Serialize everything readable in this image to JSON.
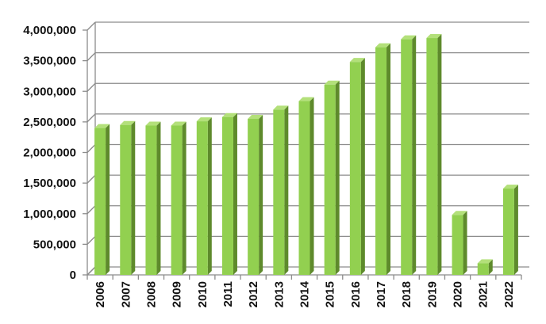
{
  "chart_data": {
    "type": "bar",
    "title": "",
    "xlabel": "",
    "ylabel": "",
    "categories": [
      "2006",
      "2007",
      "2008",
      "2009",
      "2010",
      "2011",
      "2012",
      "2013",
      "2014",
      "2015",
      "2016",
      "2017",
      "2018",
      "2019",
      "2020",
      "2021",
      "2022"
    ],
    "values": [
      2400000,
      2450000,
      2440000,
      2440000,
      2510000,
      2580000,
      2550000,
      2700000,
      2840000,
      3110000,
      3480000,
      3720000,
      3850000,
      3870000,
      980000,
      190000,
      1410000
    ],
    "ylim": [
      0,
      4000000
    ],
    "yticks": [
      0,
      500000,
      1000000,
      1500000,
      2000000,
      2500000,
      3000000,
      3500000,
      4000000
    ],
    "ytick_labels": [
      "0",
      "500,000",
      "1,000,000",
      "1,500,000",
      "2,000,000",
      "2,500,000",
      "3,000,000",
      "3,500,000",
      "4,000,000"
    ],
    "grid": true,
    "legend": "none",
    "style": "3d-column",
    "colors": {
      "bar_front": "#92D050",
      "bar_side": "#5E8A2C",
      "bar_top": "#B3E07A",
      "grid": "#8C8C8C"
    }
  }
}
